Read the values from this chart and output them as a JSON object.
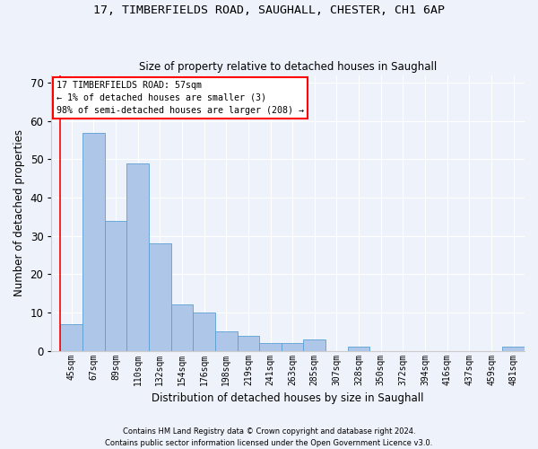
{
  "title1": "17, TIMBERFIELDS ROAD, SAUGHALL, CHESTER, CH1 6AP",
  "title2": "Size of property relative to detached houses in Saughall",
  "xlabel": "Distribution of detached houses by size in Saughall",
  "ylabel": "Number of detached properties",
  "categories": [
    "45sqm",
    "67sqm",
    "89sqm",
    "110sqm",
    "132sqm",
    "154sqm",
    "176sqm",
    "198sqm",
    "219sqm",
    "241sqm",
    "263sqm",
    "285sqm",
    "307sqm",
    "328sqm",
    "350sqm",
    "372sqm",
    "394sqm",
    "416sqm",
    "437sqm",
    "459sqm",
    "481sqm"
  ],
  "values": [
    7,
    57,
    34,
    49,
    28,
    12,
    10,
    5,
    4,
    2,
    2,
    3,
    0,
    1,
    0,
    0,
    0,
    0,
    0,
    0,
    1
  ],
  "bar_color": "#aec6e8",
  "bar_edge_color": "#5a9fd4",
  "annotation_title": "17 TIMBERFIELDS ROAD: 57sqm",
  "annotation_line1": "← 1% of detached houses are smaller (3)",
  "annotation_line2": "98% of semi-detached houses are larger (208) →",
  "footer1": "Contains HM Land Registry data © Crown copyright and database right 2024.",
  "footer2": "Contains public sector information licensed under the Open Government Licence v3.0.",
  "ylim": [
    0,
    72
  ],
  "yticks": [
    0,
    10,
    20,
    30,
    40,
    50,
    60,
    70
  ],
  "background_color": "#eef2fa",
  "grid_color": "#ffffff",
  "redline_index": 0
}
